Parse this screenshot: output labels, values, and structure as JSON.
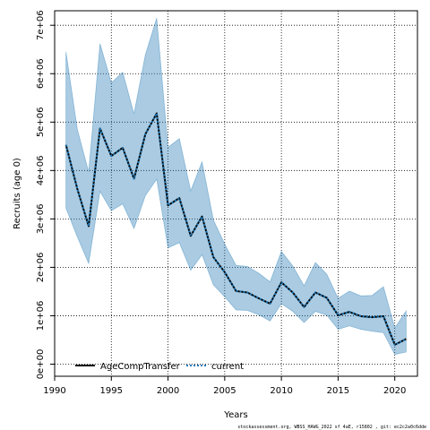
{
  "chart_data": {
    "type": "line",
    "xlabel": "Years",
    "ylabel": "Recruits (age 0)",
    "xlim": [
      1990,
      2022
    ],
    "ylim": [
      -250000,
      7300000
    ],
    "x_ticks": [
      1990,
      1995,
      2000,
      2005,
      2010,
      2015,
      2020
    ],
    "y_ticks": [
      0,
      1000000,
      2000000,
      3000000,
      4000000,
      5000000,
      6000000,
      7000000
    ],
    "y_tick_labels": [
      "0e+00",
      "1e+06",
      "2e+06",
      "3e+06",
      "4e+06",
      "5e+06",
      "6e+06",
      "7e+06"
    ],
    "grid": true,
    "legend_position": "bottom-left",
    "x": [
      1991,
      1992,
      1993,
      1994,
      1995,
      1996,
      1997,
      1998,
      1999,
      2000,
      2001,
      2002,
      2003,
      2004,
      2005,
      2006,
      2007,
      2008,
      2009,
      2010,
      2011,
      2012,
      2013,
      2014,
      2015,
      2016,
      2017,
      2018,
      2019,
      2020,
      2021
    ],
    "series": [
      {
        "name": "AgeCompTransfer",
        "color": "#000000",
        "linestyle": "solid",
        "values": [
          4530000,
          3620000,
          2850000,
          4870000,
          4300000,
          4470000,
          3830000,
          4750000,
          5180000,
          3280000,
          3430000,
          2650000,
          3050000,
          2210000,
          1900000,
          1510000,
          1480000,
          1360000,
          1250000,
          1690000,
          1480000,
          1180000,
          1480000,
          1370000,
          1010000,
          1080000,
          990000,
          970000,
          990000,
          400000,
          520000
        ]
      },
      {
        "name": "current",
        "color": "#1f77b4",
        "linestyle": "dotted",
        "values": [
          4530000,
          3620000,
          2850000,
          4870000,
          4300000,
          4470000,
          3830000,
          4750000,
          5180000,
          3280000,
          3430000,
          2650000,
          3050000,
          2210000,
          1900000,
          1510000,
          1480000,
          1360000,
          1250000,
          1690000,
          1480000,
          1180000,
          1480000,
          1370000,
          1010000,
          1080000,
          990000,
          970000,
          990000,
          400000,
          520000
        ]
      }
    ],
    "bands": [
      {
        "color": "#1f77b4",
        "upper": [
          6450000,
          4850000,
          3970000,
          6620000,
          5810000,
          6030000,
          5170000,
          6390000,
          7150000,
          4480000,
          4660000,
          3580000,
          4180000,
          2980000,
          2480000,
          2040000,
          2020000,
          1880000,
          1700000,
          2330000,
          2030000,
          1620000,
          2100000,
          1860000,
          1360000,
          1510000,
          1410000,
          1420000,
          1600000,
          750000,
          1100000
        ],
        "lower": [
          3220000,
          2630000,
          2080000,
          3570000,
          3170000,
          3310000,
          2800000,
          3480000,
          3820000,
          2400000,
          2510000,
          1940000,
          2260000,
          1640000,
          1390000,
          1120000,
          1110000,
          1020000,
          890000,
          1250000,
          1090000,
          860000,
          1090000,
          1010000,
          720000,
          790000,
          720000,
          680000,
          650000,
          200000,
          250000
        ]
      }
    ]
  },
  "footnote": "stockassessment.org, WBSS_HAWG_2022 sf 4aE, r15802 , git: ec2c2a0c6dde"
}
